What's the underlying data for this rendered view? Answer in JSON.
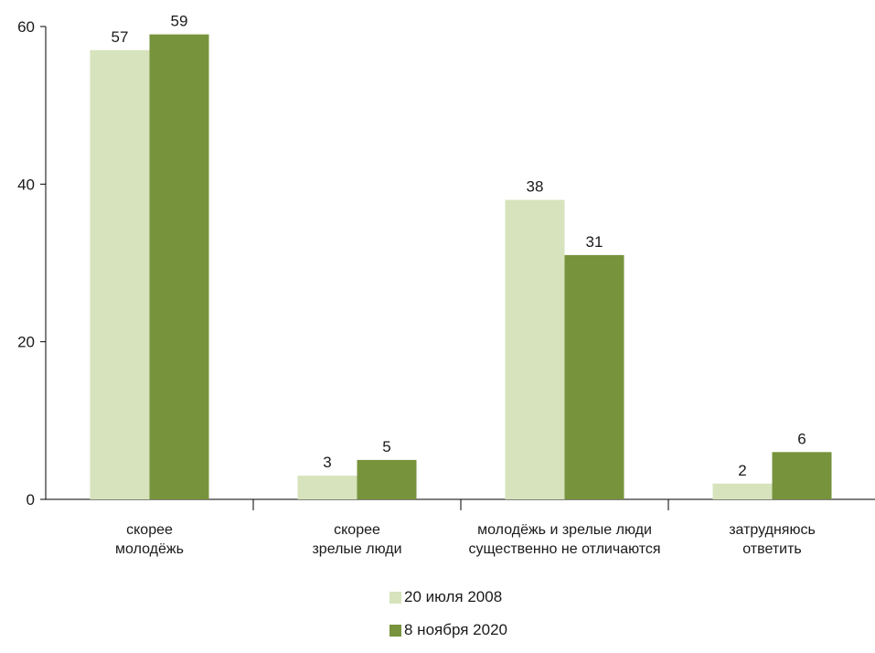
{
  "chart_data": {
    "type": "bar",
    "categories": [
      [
        "скорее",
        "молодёжь"
      ],
      [
        "скорее",
        "зрелые люди"
      ],
      [
        "молодёжь и зрелые люди",
        "существенно не отличаются"
      ],
      [
        "затрудняюсь",
        "ответить"
      ]
    ],
    "series": [
      {
        "name": "20 июля 2008",
        "values": [
          57,
          3,
          38,
          2
        ],
        "color": "#d6e3bc"
      },
      {
        "name": "8 ноября 2020",
        "values": [
          59,
          5,
          31,
          6
        ],
        "color": "#77933c"
      }
    ],
    "ylim": [
      0,
      60
    ],
    "yticks": [
      0,
      20,
      40,
      60
    ],
    "legend_position": "bottom-center",
    "grid": false
  }
}
